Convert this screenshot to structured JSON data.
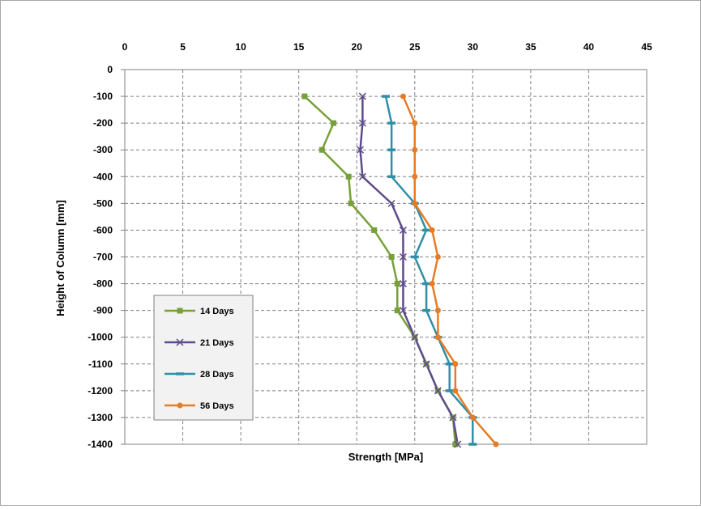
{
  "chart_data": {
    "type": "line",
    "xlabel": "Strength [MPa]",
    "ylabel": "Height of Column [mm]",
    "xlim": [
      0,
      45
    ],
    "ylim": [
      -1400,
      0
    ],
    "x_ticks": [
      0,
      5,
      10,
      15,
      20,
      25,
      30,
      35,
      40,
      45
    ],
    "y_ticks": [
      0,
      -100,
      -200,
      -300,
      -400,
      -500,
      -600,
      -700,
      -800,
      -900,
      -1000,
      -1100,
      -1200,
      -1300,
      -1400
    ],
    "x_axis_position": "top",
    "grid": true,
    "legend_position": "bottom-left",
    "heights": [
      -100,
      -200,
      -300,
      -400,
      -500,
      -600,
      -700,
      -800,
      -900,
      -1000,
      -1100,
      -1200,
      -1300,
      -1400
    ],
    "series": [
      {
        "name": "14 Days",
        "color": "#77a03a",
        "marker": "square",
        "values": [
          15.5,
          18,
          17,
          19.3,
          19.5,
          21.5,
          23,
          23.5,
          23.5,
          25,
          26,
          27,
          28.3,
          28.5
        ]
      },
      {
        "name": "21 Days",
        "color": "#5f4b8b",
        "marker": "x",
        "values": [
          20.5,
          20.5,
          20.3,
          20.5,
          23,
          24,
          24,
          24,
          24,
          25,
          26,
          27,
          28.3,
          28.7
        ]
      },
      {
        "name": "28 Days",
        "color": "#2f8fa8",
        "marker": "dash",
        "values": [
          22.5,
          23,
          23,
          23,
          25,
          26,
          25,
          26,
          26,
          27,
          28,
          28,
          30,
          30
        ]
      },
      {
        "name": "56 Days",
        "color": "#e57c26",
        "marker": "circle",
        "values": [
          24,
          25,
          25,
          25,
          25,
          26.5,
          27,
          26.5,
          27,
          27,
          28.5,
          28.5,
          30,
          32
        ]
      }
    ]
  }
}
